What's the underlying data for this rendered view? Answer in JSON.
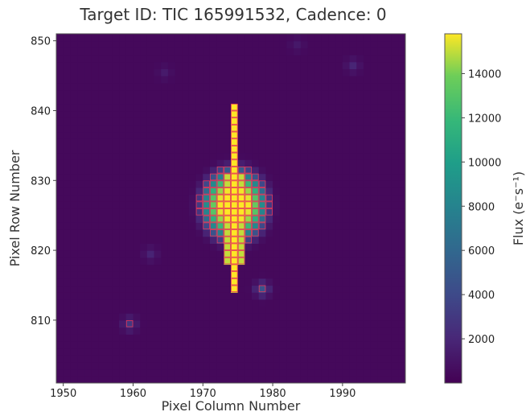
{
  "chart_data": {
    "type": "heatmap",
    "title": "Target ID: TIC 165991532, Cadence: 0",
    "xlabel": "Pixel Column Number",
    "ylabel": "Pixel Row Number",
    "colorbar_label": "Flux (e⁻s⁻¹)",
    "xlim": [
      1949,
      1999
    ],
    "ylim": [
      801,
      851
    ],
    "x_ticks": [
      1950,
      1960,
      1970,
      1980,
      1990
    ],
    "y_ticks": [
      810,
      820,
      830,
      840,
      850
    ],
    "colorbar_ticks": [
      2000,
      4000,
      6000,
      8000,
      10000,
      12000,
      14000
    ],
    "colorbar_range": [
      0,
      15800
    ],
    "colormap": "viridis",
    "background_flux": 400,
    "saturated_column": {
      "col": 1974,
      "row_min": 814,
      "row_max": 840,
      "flux": 15800
    },
    "bright_blob": {
      "col_center": 1974.5,
      "row_center": 826.5,
      "radius_cols": 4.5,
      "radius_rows": 5,
      "peak_flux": 15800
    },
    "faint_sources": [
      {
        "col": 1959.5,
        "row": 809.5,
        "flux": 2600
      },
      {
        "col": 1978.5,
        "row": 814.5,
        "flux": 4200
      },
      {
        "col": 1962.5,
        "row": 819.5,
        "flux": 1400
      },
      {
        "col": 1991.5,
        "row": 846.5,
        "flux": 1500
      },
      {
        "col": 1964.5,
        "row": 845.5,
        "flux": 900
      },
      {
        "col": 1983.5,
        "row": 849.5,
        "flux": 800
      }
    ],
    "aperture_mask_color": "#e8365a"
  }
}
